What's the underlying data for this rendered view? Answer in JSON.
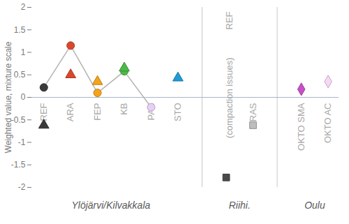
{
  "chart_data": {
    "type": "scatter",
    "y_label": "Weighted value, mixture scale",
    "categories": [
      "REF",
      "ARA",
      "FEP",
      "KB",
      "PAB",
      "STO",
      "REF",
      "RAS",
      "OKTO SMA",
      "OKTO AC"
    ],
    "groups": [
      {
        "label": "Ylöjärvi/Kilvakkala",
        "size": 6
      },
      {
        "label": "Riihi.",
        "size": 2
      },
      {
        "label": "Oulu",
        "size": 2
      }
    ],
    "annotations": [
      {
        "text": "(compaction issues)",
        "category": 6
      }
    ],
    "series": [
      {
        "marker": "circle",
        "line_style": "solid",
        "color": "#b3b3b3",
        "values": [
          0.22,
          1.15,
          0.1,
          0.58,
          -0.22,
          null,
          null,
          null,
          null,
          null
        ],
        "colors": [
          "#3a3a3a",
          "#d9482b",
          "#f5a31a",
          "#4cb848",
          "#e8cff7",
          null,
          null,
          null,
          null,
          null
        ]
      },
      {
        "marker": "triangle",
        "values": [
          -0.62,
          0.5,
          0.35,
          0.65,
          null,
          0.43,
          null,
          null,
          null,
          null
        ],
        "colors": [
          "#3a3a3a",
          "#d9482b",
          "#f5a31a",
          "#4cb848",
          null,
          "#1f9bd7",
          null,
          null,
          null,
          null
        ]
      },
      {
        "marker": "square",
        "values": [
          null,
          null,
          null,
          null,
          null,
          null,
          -1.78,
          -0.62,
          null,
          null
        ],
        "colors": [
          null,
          null,
          null,
          null,
          null,
          null,
          "#4a4a4a",
          "#bdbdbd",
          null,
          null
        ]
      },
      {
        "marker": "diamond",
        "values": [
          null,
          null,
          null,
          null,
          null,
          null,
          null,
          null,
          0.18,
          0.35
        ],
        "colors": [
          null,
          null,
          null,
          null,
          null,
          null,
          null,
          null,
          "#c84fc8",
          "#f8d8f8"
        ]
      }
    ],
    "ylim": [
      -2,
      2
    ],
    "yticks": [
      -2,
      -1.5,
      -1,
      -0.5,
      0,
      0.5,
      1,
      1.5,
      2
    ],
    "grid": false
  }
}
